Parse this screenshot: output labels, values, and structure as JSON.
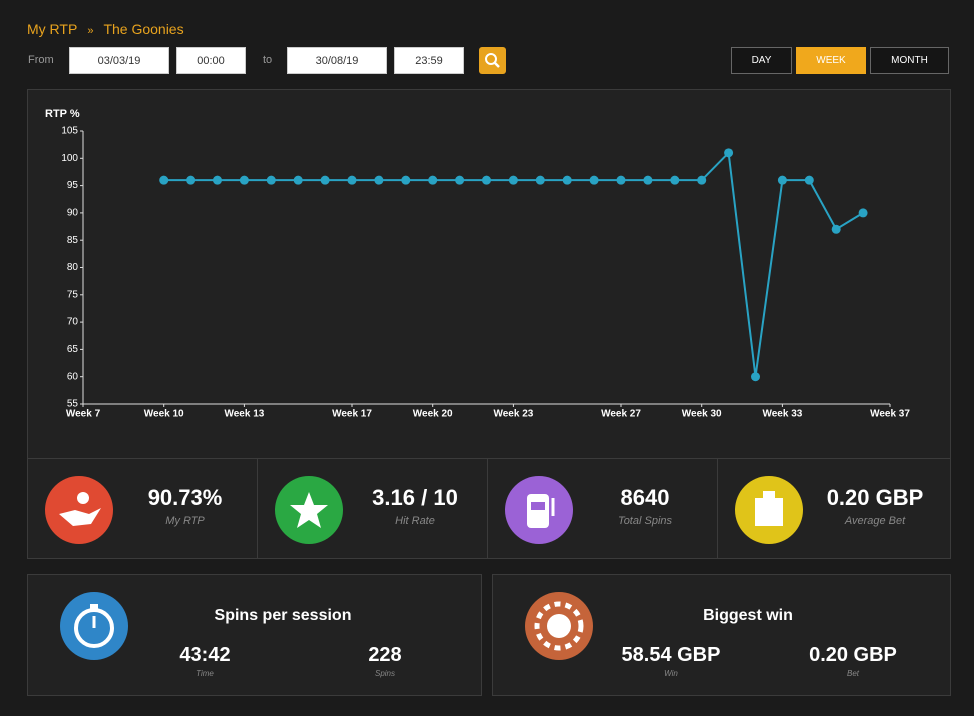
{
  "breadcrumb": {
    "items": [
      "My RTP",
      "The Goonies"
    ],
    "separator": "»"
  },
  "filters": {
    "from_label": "From",
    "from_date": "03/03/19",
    "from_time": "00:00",
    "to_label": "to",
    "to_date": "30/08/19",
    "to_time": "23:59"
  },
  "periods": [
    "DAY",
    "WEEK",
    "MONTH"
  ],
  "chart_data": {
    "type": "line",
    "y_label": "RTP %",
    "color": "#29a3c4",
    "x": [
      10,
      11,
      12,
      13,
      14,
      15,
      16,
      17,
      18,
      19,
      20,
      21,
      22,
      23,
      24,
      25,
      26,
      27,
      28,
      29,
      30,
      31,
      32,
      33,
      34,
      35,
      36
    ],
    "values": [
      96,
      96,
      96,
      96,
      96,
      96,
      96,
      96,
      96,
      96,
      96,
      96,
      96,
      96,
      96,
      96,
      96,
      96,
      96,
      96,
      96,
      101,
      60,
      96,
      96,
      87,
      90
    ],
    "xlim": [
      7,
      37
    ],
    "xticks": [
      {
        "value": 7,
        "label": "Week 7"
      },
      {
        "value": 10,
        "label": "Week 10"
      },
      {
        "value": 13,
        "label": "Week 13"
      },
      {
        "value": 17,
        "label": "Week 17"
      },
      {
        "value": 20,
        "label": "Week 20"
      },
      {
        "value": 23,
        "label": "Week 23"
      },
      {
        "value": 27,
        "label": "Week 27"
      },
      {
        "value": 30,
        "label": "Week 30"
      },
      {
        "value": 33,
        "label": "Week 33"
      },
      {
        "value": 37,
        "label": "Week 37"
      }
    ],
    "ylim": [
      55,
      105
    ],
    "yticks": [
      55,
      60,
      65,
      70,
      75,
      80,
      85,
      90,
      95,
      100,
      105
    ],
    "grid": false
  },
  "stats": [
    {
      "value": "90.73%",
      "label": "My RTP"
    },
    {
      "value": "3.16 / 10",
      "label": "Hit Rate"
    },
    {
      "value": "8640",
      "label": "Total Spins"
    },
    {
      "value": "0.20 GBP",
      "label": "Average Bet"
    }
  ],
  "sessions": {
    "title": "Spins per session",
    "items": [
      {
        "value": "43:42",
        "label": "Time"
      },
      {
        "value": "228",
        "label": "Spins"
      }
    ]
  },
  "biggest_win": {
    "title": "Biggest win",
    "items": [
      {
        "value": "58.54 GBP",
        "label": "Win"
      },
      {
        "value": "0.20 GBP",
        "label": "Bet"
      }
    ]
  }
}
